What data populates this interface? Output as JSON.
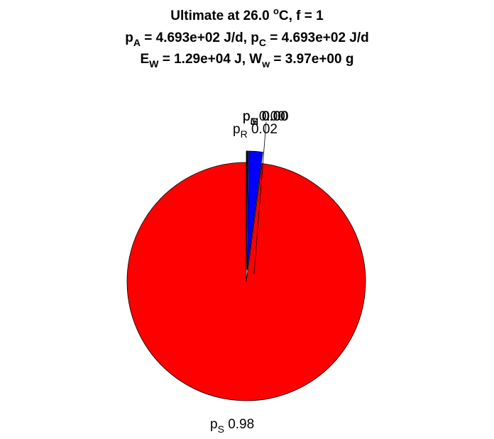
{
  "title": {
    "line1": {
      "prefix": "Ultimate at 26.0 ",
      "sup": "o",
      "suffix": "C, f = 1"
    },
    "line2": {
      "a_base": "p",
      "a_sub": "A",
      "a_rest": " = 4.693e+02 J/d, ",
      "c_base": "p",
      "c_sub": "C",
      "c_rest": " = 4.693e+02 J/d"
    },
    "line3": {
      "e_base": "E",
      "e_sub": "W",
      "e_rest": " = 1.29e+04 J, ",
      "w_base": "W",
      "w_sub": "w",
      "w_rest": " = 3.97e+00 g"
    }
  },
  "chart_data": {
    "type": "pie",
    "start_angle_deg": 90,
    "direction": "counterclockwise",
    "slices": [
      {
        "base": "p",
        "sub": "S",
        "value_label": "0.98",
        "fraction": 0.979,
        "color": "#ff0000",
        "exploded": false
      },
      {
        "base": "p",
        "sub": "R",
        "value_label": "0.02",
        "fraction": 0.019,
        "color": "#0000ff",
        "exploded": true
      },
      {
        "base": "p",
        "sub": "M",
        "value_label": "0.00",
        "fraction": 0.0008,
        "color": "#ffffff",
        "exploded": true
      },
      {
        "base": "p",
        "sub": "G",
        "value_label": "0.00",
        "fraction": 0.0006,
        "color": "#d0d0d0",
        "exploded": true
      },
      {
        "base": "p",
        "sub": "J",
        "value_label": "0.00",
        "fraction": 0.0006,
        "color": "#808080",
        "exploded": true
      }
    ]
  }
}
